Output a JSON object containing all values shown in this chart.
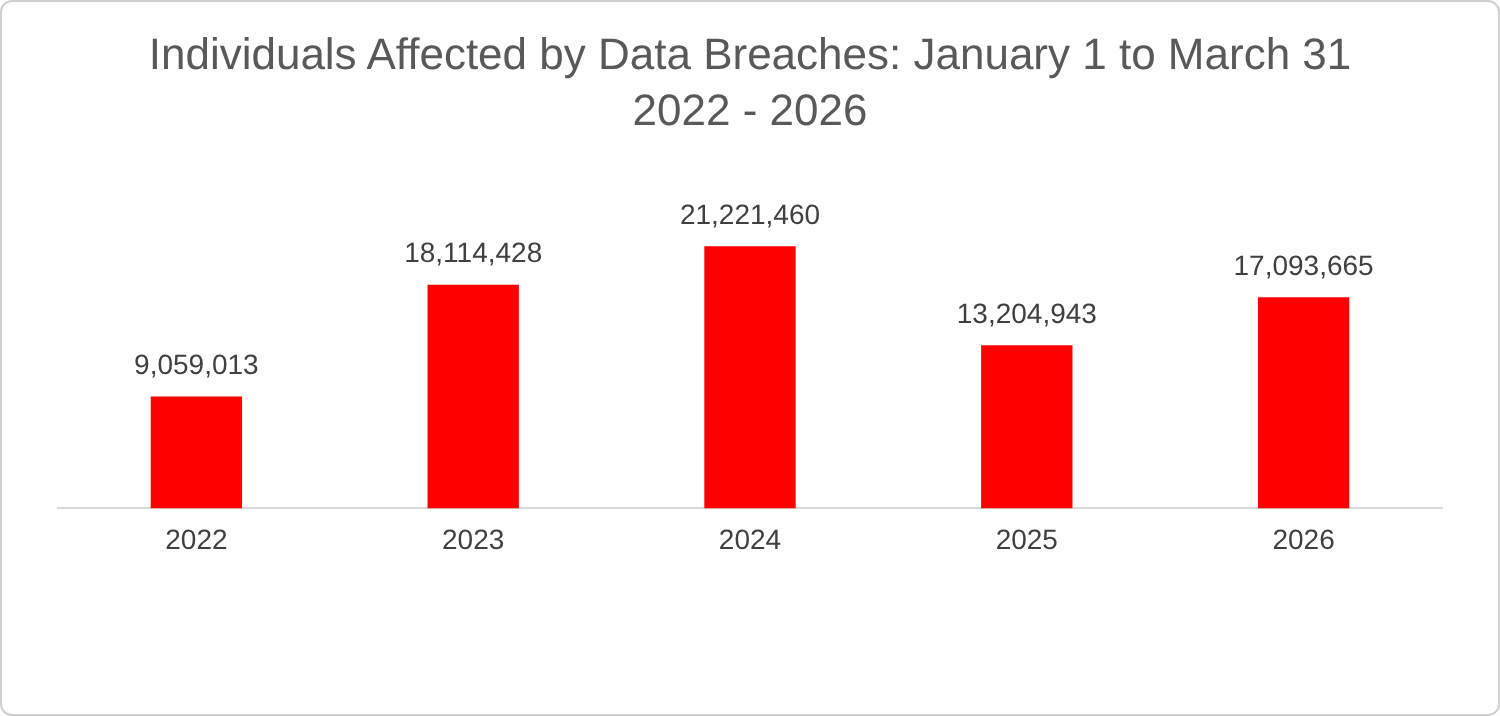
{
  "chart_data": {
    "type": "bar",
    "title": "Individuals Affected by Data Breaches: January 1 to March 31",
    "subtitle": "2022 - 2026",
    "categories": [
      "2022",
      "2023",
      "2024",
      "2025",
      "2026"
    ],
    "values": [
      9059013,
      18114428,
      21221460,
      13204943,
      17093665
    ],
    "color": "#ff0000",
    "value_labels": [
      "9,059,013",
      "18,114,428",
      "21,221,460",
      "13,204,943",
      "17,093,665"
    ],
    "grid": false,
    "legend": false
  }
}
